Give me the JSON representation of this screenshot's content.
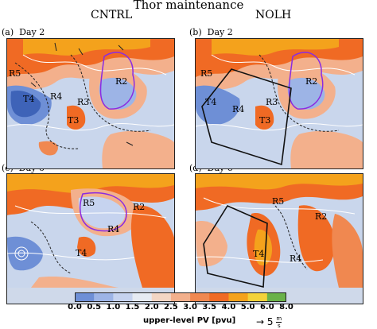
{
  "figure_title": "Thor maintenance",
  "columns": [
    "CNTRL",
    "NOLH"
  ],
  "panels": [
    {
      "label": "(a)",
      "day": "Day 2",
      "regions": [
        "R5",
        "T4",
        "R4",
        "R3",
        "T3",
        "R2"
      ]
    },
    {
      "label": "(b)",
      "day": "Day 2",
      "regions": [
        "R5",
        "T4",
        "R4",
        "R3",
        "T3",
        "R2"
      ]
    },
    {
      "label": "(c)",
      "day": "Day 6",
      "regions": [
        "R5",
        "R2",
        "R4",
        "T4"
      ]
    },
    {
      "label": "(d)",
      "day": "Day 6",
      "regions": [
        "R5",
        "R2",
        "T4",
        "R4"
      ]
    }
  ],
  "colorbar": {
    "ticks": [
      "0.0",
      "0.5",
      "1.0",
      "1.5",
      "2.0",
      "2.5",
      "3.0",
      "3.5",
      "4.0",
      "5.0",
      "6.0",
      "8.0"
    ],
    "colors": [
      "#6e8fd6",
      "#9db4e6",
      "#c6d3ef",
      "#e6ebf3",
      "#f3d6c4",
      "#f3b08c",
      "#f08850",
      "#f06a24",
      "#f4a21c",
      "#f3d23a",
      "#6ab24a"
    ],
    "label": "upper-level PV [pvu]"
  },
  "wind_key": {
    "arrow": "→",
    "value": "5",
    "unit_num": "m",
    "unit_den": "s"
  }
}
